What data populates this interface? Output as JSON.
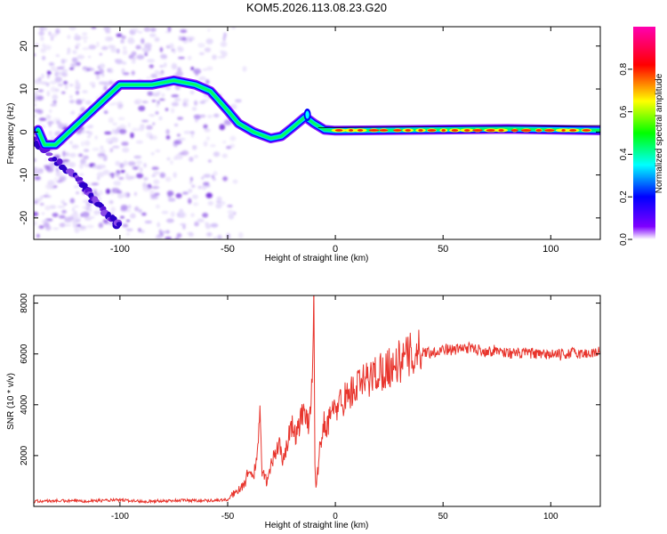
{
  "title": "KOM5.2026.113.08.23.G20",
  "chart_data": [
    {
      "type": "heatmap",
      "xlabel": "Height of straight line (km)",
      "ylabel": "Frequency (Hz)",
      "xlim": [
        -140,
        123
      ],
      "ylim": [
        -25,
        24.5
      ],
      "xticks": [
        -100,
        -50,
        0,
        50,
        100
      ],
      "yticks": [
        20,
        10,
        0,
        -10,
        -20
      ],
      "colorbar": {
        "label": "Normalized spectral amplitude",
        "range": [
          0,
          1
        ],
        "ticks": [
          "0.0",
          "0.2",
          "0.4",
          "0.6",
          "0.8"
        ],
        "colors": [
          "#ffffff",
          "#7f00ff",
          "#0000ff",
          "#00ffff",
          "#00ff00",
          "#ffff00",
          "#ff0000",
          "#ff00b0"
        ]
      },
      "ridge": [
        {
          "x": -138,
          "y": 0.5
        },
        {
          "x": -135,
          "y": -3
        },
        {
          "x": -130,
          "y": -3
        },
        {
          "x": -100,
          "y": 11
        },
        {
          "x": -85,
          "y": 11
        },
        {
          "x": -75,
          "y": 12
        },
        {
          "x": -65,
          "y": 11
        },
        {
          "x": -58,
          "y": 9.5
        },
        {
          "x": -50,
          "y": 5
        },
        {
          "x": -45,
          "y": 2
        },
        {
          "x": -38,
          "y": 0
        },
        {
          "x": -30,
          "y": -1.5
        },
        {
          "x": -25,
          "y": -1
        },
        {
          "x": -20,
          "y": 1
        },
        {
          "x": -14,
          "y": 3.5
        },
        {
          "x": -10,
          "y": 2
        },
        {
          "x": -5,
          "y": 0.5
        },
        {
          "x": 0,
          "y": 0.3
        },
        {
          "x": 40,
          "y": 0.5
        },
        {
          "x": 80,
          "y": 0.7
        },
        {
          "x": 123,
          "y": 0.4
        }
      ],
      "reference_line": [
        {
          "x": -8,
          "y": 1
        },
        {
          "x": 123,
          "y": 1.5
        }
      ],
      "diagonal_branch": [
        {
          "x": -140,
          "y": -2
        },
        {
          "x": -120,
          "y": -11
        },
        {
          "x": -110,
          "y": -17
        },
        {
          "x": -100,
          "y": -22
        }
      ]
    },
    {
      "type": "line",
      "xlabel": "Height of straight line (km)",
      "ylabel": "SNR (10 * v/v)",
      "xlim": [
        -140,
        123
      ],
      "ylim": [
        0,
        8300
      ],
      "xticks": [
        -100,
        -50,
        0,
        50,
        100
      ],
      "yticks": [
        2000,
        4000,
        6000,
        8000
      ],
      "color": "#e8342c",
      "x": [
        -140,
        -130,
        -120,
        -110,
        -100,
        -90,
        -80,
        -70,
        -60,
        -50,
        -46,
        -42,
        -40,
        -38,
        -36,
        -35,
        -34,
        -32,
        -30,
        -28,
        -26,
        -24,
        -22,
        -20,
        -18,
        -16,
        -14,
        -12,
        -11,
        -10,
        -9.5,
        -9,
        -8,
        -7,
        -6,
        -5,
        -4,
        -2,
        0,
        2,
        5,
        10,
        15,
        20,
        25,
        30,
        35,
        40,
        45,
        50,
        55,
        60,
        65,
        70,
        75,
        80,
        85,
        90,
        95,
        100,
        105,
        110,
        115,
        120,
        123
      ],
      "y": [
        200,
        220,
        210,
        230,
        250,
        200,
        220,
        240,
        230,
        260,
        600,
        900,
        1500,
        1100,
        2300,
        3500,
        1400,
        1000,
        1600,
        2100,
        2400,
        1800,
        2600,
        3200,
        2800,
        3400,
        3900,
        3100,
        4800,
        8300,
        2000,
        700,
        1500,
        2400,
        2900,
        3400,
        3200,
        3600,
        3800,
        4100,
        4300,
        4700,
        5000,
        5300,
        5500,
        5700,
        5950,
        6100,
        6050,
        6200,
        6150,
        6250,
        6200,
        6100,
        6150,
        6050,
        6000,
        6050,
        5950,
        6000,
        5950,
        6050,
        6000,
        6050,
        6100
      ]
    }
  ]
}
